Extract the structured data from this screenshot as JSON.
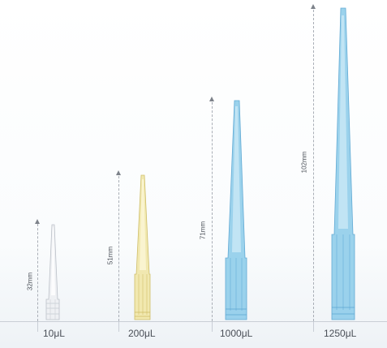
{
  "tips": [
    {
      "volume": "10μL",
      "height": "32mm",
      "color": "#e6e9ee"
    },
    {
      "volume": "200μL",
      "height": "51mm",
      "color": "#efe39e"
    },
    {
      "volume": "1000μL",
      "height": "71mm",
      "color": "#8ecbe9"
    },
    {
      "volume": "1250μL",
      "height": "102mm",
      "color": "#8ecbe9"
    }
  ]
}
